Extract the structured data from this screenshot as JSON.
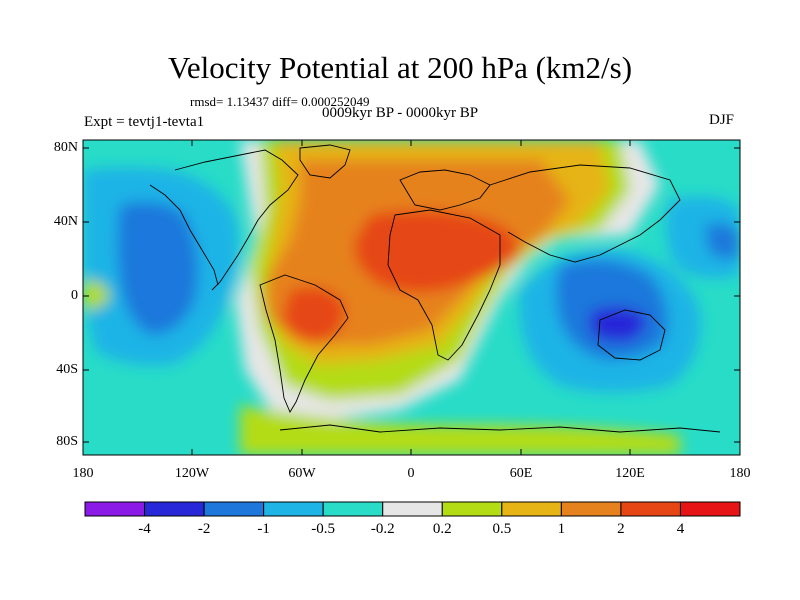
{
  "title": "Velocity Potential at 200 hPa (km2/s)",
  "stats": "rmsd= 1.13437 diff= 0.000252049",
  "period": "0009kyr BP - 0000kyr BP",
  "experiment": "Expt = tevtj1-tevta1",
  "season": "DJF",
  "lat_labels": [
    "80N",
    "40N",
    "0",
    "40S",
    "80S"
  ],
  "lon_labels": [
    "180",
    "120W",
    "60W",
    "0",
    "60E",
    "120E",
    "180"
  ],
  "colorbar": {
    "labels": [
      "-4",
      "-2",
      "-1",
      "-0.5",
      "-0.2",
      "0.2",
      "0.5",
      "1",
      "2",
      "4"
    ],
    "colors": [
      "#8c1ae6",
      "#2828d8",
      "#1e78dc",
      "#1eb4e6",
      "#28dcc8",
      "#e6e6e6",
      "#b4dc14",
      "#e6b414",
      "#e6821e",
      "#e64614",
      "#e61414"
    ]
  }
}
